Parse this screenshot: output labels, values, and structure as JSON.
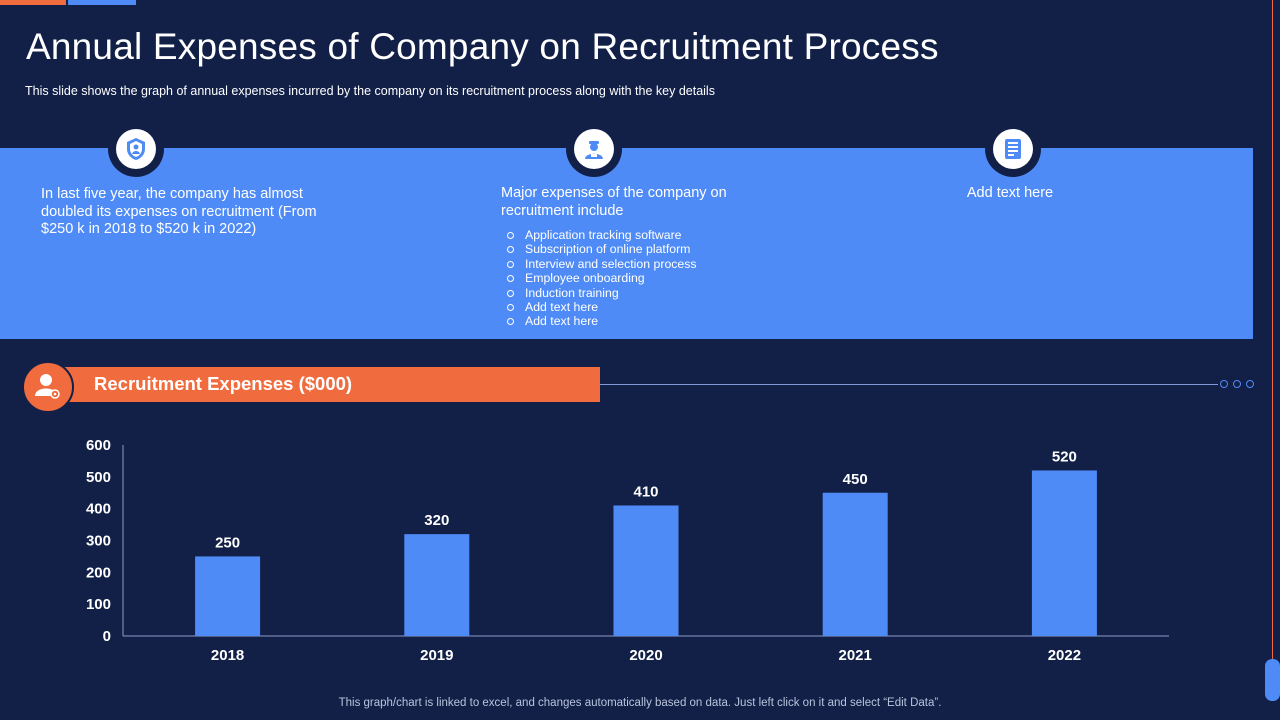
{
  "title": "Annual Expenses of Company on Recruitment Process",
  "subtitle": "This slide shows the graph  of annual  expenses incurred  by the company  on its recruitment  process along with the key details",
  "panel": {
    "col1_text": "In last five year, the company has almost doubled its expenses on recruitment (From $250 k in 2018 to $520 k in 2022)",
    "col2_heading": "Major expenses of the company on recruitment include",
    "col2_bullets": [
      "Application tracking software",
      "Subscription of online platform",
      "Interview and selection process",
      "Employee onboarding",
      "Induction training",
      "Add text here",
      "Add text here"
    ],
    "col3_text": "Add text here"
  },
  "banner": {
    "label": "Recruitment Expenses ($000)"
  },
  "footnote": "This graph/chart is linked to excel,  and changes automatically based on data. Just left click on it and select “Edit Data”.",
  "icons": [
    "shield-icon",
    "person-icon",
    "document-icon",
    "user-settings-icon"
  ],
  "colors": {
    "background": "#122048",
    "accent_blue": "#4f8bf7",
    "accent_orange": "#f06b3e"
  },
  "chart_data": {
    "type": "bar",
    "title": "Recruitment Expenses ($000)",
    "categories": [
      "2018",
      "2019",
      "2020",
      "2021",
      "2022"
    ],
    "values": [
      250,
      320,
      410,
      450,
      520
    ],
    "ylim": [
      0,
      600
    ],
    "yticks": [
      0,
      100,
      200,
      300,
      400,
      500,
      600
    ],
    "xlabel": "",
    "ylabel": "",
    "grid": false,
    "legend": "none"
  }
}
